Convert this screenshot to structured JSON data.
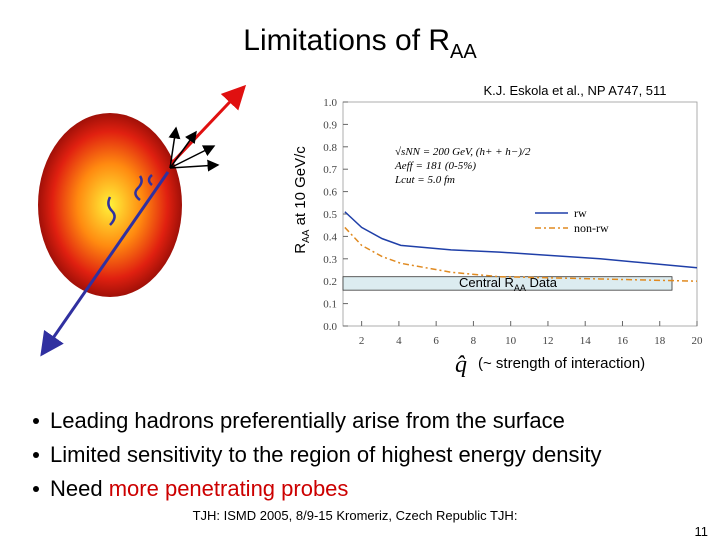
{
  "slide": {
    "title": {
      "main": "Limitations of R",
      "sub": "AA"
    },
    "bullets": [
      [
        {
          "text": "Leading hadrons preferentially arise from the surface",
          "color": "#000000"
        }
      ],
      [
        {
          "text": "Limited sensitivity to the region of highest energy density",
          "color": "#000000"
        }
      ],
      [
        {
          "text": "Need ",
          "color": "#000000"
        },
        {
          "text": "more penetrating probes",
          "color": "#cc0000"
        }
      ]
    ],
    "footer": "TJH: ISMD 2005, 8/9-15 Kromeriz, Czech Republic TJH:",
    "page_number": "11",
    "citation": "K.J. Eskola et al., NP A747, 511"
  },
  "chart_data": {
    "type": "line",
    "ylabel": {
      "main": "R",
      "sub": "AA",
      "rest": "  at  10 GeV/c"
    },
    "xlabel": {
      "symbol": "q̂",
      "text": "(~ strength of interaction)"
    },
    "annotations": [
      "√sNN = 200 GeV, (h+ + h−)/2",
      "Aeff = 181 (0-5%)",
      "Lcut = 5.0 fm"
    ],
    "band": {
      "label": {
        "main": "Central R",
        "sub": "AA",
        "rest": " Data"
      },
      "range": [
        0.16,
        0.22
      ],
      "color": "#dcecf0"
    },
    "xlim": [
      1,
      20
    ],
    "xticks": [
      2,
      4,
      6,
      8,
      10,
      12,
      14,
      16,
      18,
      20
    ],
    "ylim": [
      0,
      1
    ],
    "yticks": [
      {
        "value": 0,
        "label": "0.0"
      },
      0.1,
      0.2,
      0.3,
      0.4,
      0.5,
      0.6,
      0.7,
      0.8,
      0.9,
      {
        "value": 1,
        "label": "1.0"
      }
    ],
    "x": [
      1.1,
      2,
      3.1,
      4.1,
      6.8,
      9.4,
      14.8,
      20
    ],
    "series": [
      {
        "name": "rw",
        "color": "#1f3fa8",
        "dash": "none",
        "values": [
          0.51,
          0.44,
          0.39,
          0.36,
          0.34,
          0.33,
          0.3,
          0.26
        ]
      },
      {
        "name": "non-rw",
        "color": "#e08a20",
        "dash": "6 3 2 3",
        "values": [
          0.44,
          0.36,
          0.31,
          0.28,
          0.24,
          0.22,
          0.21,
          0.2
        ]
      }
    ]
  }
}
